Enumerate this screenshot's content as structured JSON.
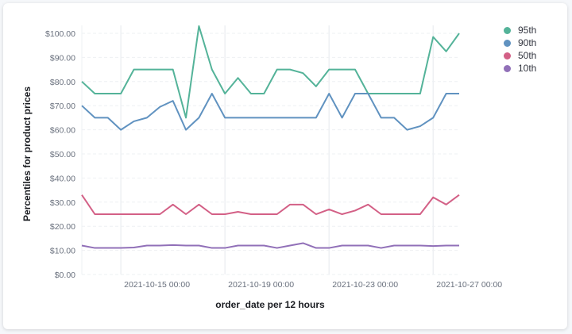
{
  "chart_data": {
    "type": "line",
    "xlabel": "order_date per 12 hours",
    "ylabel": "Percentiles for product prices",
    "ylim": [
      0,
      100
    ],
    "yticks": [
      "$0.00",
      "$10.00",
      "$20.00",
      "$30.00",
      "$40.00",
      "$50.00",
      "$60.00",
      "$70.00",
      "$80.00",
      "$90.00",
      "$100.00"
    ],
    "xticks": [
      "2021-10-15 00:00",
      "2021-10-19 00:00",
      "2021-10-23 00:00",
      "2021-10-27 00:00"
    ],
    "x_interval": "12 hours",
    "grid": true,
    "legend": "right",
    "series": [
      {
        "name": "95th",
        "color": "#54B399",
        "values": [
          80,
          75,
          75,
          75,
          85,
          85,
          85,
          85,
          65,
          103,
          85,
          75,
          81.5,
          75,
          75,
          85,
          85,
          83.5,
          78,
          85,
          85,
          85,
          75,
          75,
          75,
          75,
          75,
          98.5,
          92.5,
          100
        ]
      },
      {
        "name": "90th",
        "color": "#6092C0",
        "values": [
          70,
          65,
          65,
          60,
          63.5,
          65,
          69.5,
          72,
          60,
          65,
          75,
          65,
          65,
          65,
          65,
          65,
          65,
          65,
          65,
          75,
          65,
          75,
          75,
          65,
          65,
          60,
          61.5,
          65,
          75,
          75
        ]
      },
      {
        "name": "50th",
        "color": "#D36086",
        "values": [
          33,
          25,
          25,
          25,
          25,
          25,
          25,
          29,
          25,
          29,
          25,
          25,
          26,
          25,
          25,
          25,
          29,
          29,
          25,
          27,
          25,
          26.5,
          29,
          25,
          25,
          25,
          25,
          32,
          29,
          33
        ]
      },
      {
        "name": "10th",
        "color": "#9170B8",
        "values": [
          12,
          11,
          11,
          11,
          11.2,
          12,
          12,
          12.2,
          12,
          12,
          11,
          11,
          12,
          12,
          12,
          11,
          12,
          13,
          11,
          11,
          12,
          12,
          12,
          11,
          12,
          12,
          12,
          11.8,
          12,
          12
        ]
      }
    ]
  }
}
